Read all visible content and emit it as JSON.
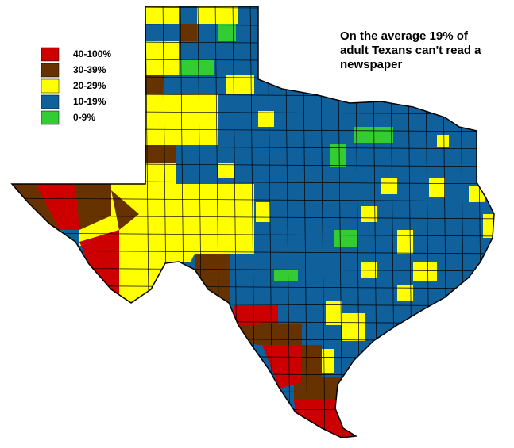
{
  "legend": [
    {
      "label": "40-100%",
      "color": "#cc0000"
    },
    {
      "label": "30-39%",
      "color": "#663300"
    },
    {
      "label": "20-29%",
      "color": "#ffff00"
    },
    {
      "label": "10-19%",
      "color": "#10609c"
    },
    {
      "label": "0-9%",
      "color": "#33cc33"
    }
  ],
  "annotation": [
    "On the average 19% of",
    "adult Texans can't read a",
    "newspaper"
  ]
}
